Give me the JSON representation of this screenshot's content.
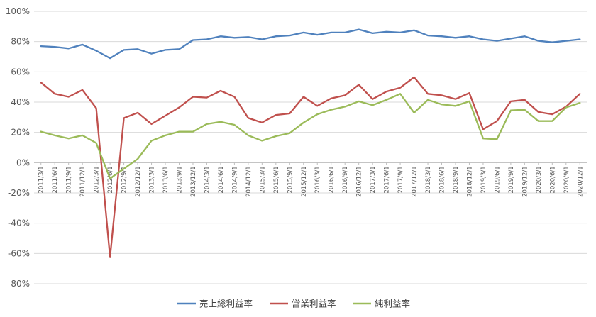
{
  "chart_data": {
    "type": "line",
    "title": "",
    "xlabel": "",
    "ylabel": "",
    "ylim": [
      -0.8,
      1.0
    ],
    "yticks": [
      "100%",
      "80%",
      "60%",
      "40%",
      "20%",
      "0%",
      "-20%",
      "-40%",
      "-60%",
      "-80%"
    ],
    "grid": true,
    "legend_position": "bottom",
    "x": [
      "2011/3/1",
      "2011/6/1",
      "2011/9/1",
      "2011/12/1",
      "2012/3/1",
      "2012/6/1",
      "2012/9/1",
      "2012/12/1",
      "2013/3/1",
      "2013/6/1",
      "2013/9/1",
      "2013/12/1",
      "2014/3/1",
      "2014/6/1",
      "2014/9/1",
      "2014/12/1",
      "2015/3/1",
      "2015/6/1",
      "2015/9/1",
      "2015/12/1",
      "2016/3/1",
      "2016/6/1",
      "2016/9/1",
      "2016/12/1",
      "2017/3/1",
      "2017/6/1",
      "2017/9/1",
      "2017/12/1",
      "2018/3/1",
      "2018/6/1",
      "2018/9/1",
      "2018/12/1",
      "2019/3/1",
      "2019/6/1",
      "2019/9/1",
      "2019/12/1",
      "2020/3/1",
      "2020/6/1",
      "2020/9/1",
      "2020/12/1"
    ],
    "series": [
      {
        "name": "売上総利益率",
        "color": "#4f81bd",
        "values": [
          0.77,
          0.765,
          0.755,
          0.78,
          0.74,
          0.69,
          0.745,
          0.75,
          0.72,
          0.745,
          0.75,
          0.81,
          0.815,
          0.835,
          0.825,
          0.83,
          0.815,
          0.835,
          0.84,
          0.86,
          0.845,
          0.86,
          0.86,
          0.88,
          0.855,
          0.865,
          0.86,
          0.875,
          0.84,
          0.835,
          0.825,
          0.835,
          0.815,
          0.805,
          0.82,
          0.835,
          0.805,
          0.795,
          0.805,
          0.815
        ]
      },
      {
        "name": "営業利益率",
        "color": "#c0504d",
        "values": [
          0.53,
          0.455,
          0.435,
          0.48,
          0.36,
          -0.625,
          0.295,
          0.33,
          0.255,
          0.31,
          0.365,
          0.435,
          0.43,
          0.475,
          0.435,
          0.295,
          0.265,
          0.315,
          0.325,
          0.435,
          0.375,
          0.425,
          0.445,
          0.515,
          0.42,
          0.47,
          0.495,
          0.565,
          0.455,
          0.445,
          0.42,
          0.46,
          0.22,
          0.275,
          0.405,
          0.415,
          0.335,
          0.32,
          0.37,
          0.455
        ]
      },
      {
        "name": "純利益率",
        "color": "#9bbb59",
        "values": [
          0.205,
          0.18,
          0.16,
          0.18,
          0.13,
          -0.105,
          -0.04,
          0.025,
          0.145,
          0.18,
          0.205,
          0.205,
          0.255,
          0.27,
          0.25,
          0.18,
          0.145,
          0.175,
          0.195,
          0.265,
          0.32,
          0.35,
          0.37,
          0.405,
          0.38,
          0.415,
          0.455,
          0.33,
          0.415,
          0.385,
          0.375,
          0.405,
          0.16,
          0.155,
          0.345,
          0.35,
          0.275,
          0.275,
          0.365,
          0.395
        ]
      }
    ]
  }
}
